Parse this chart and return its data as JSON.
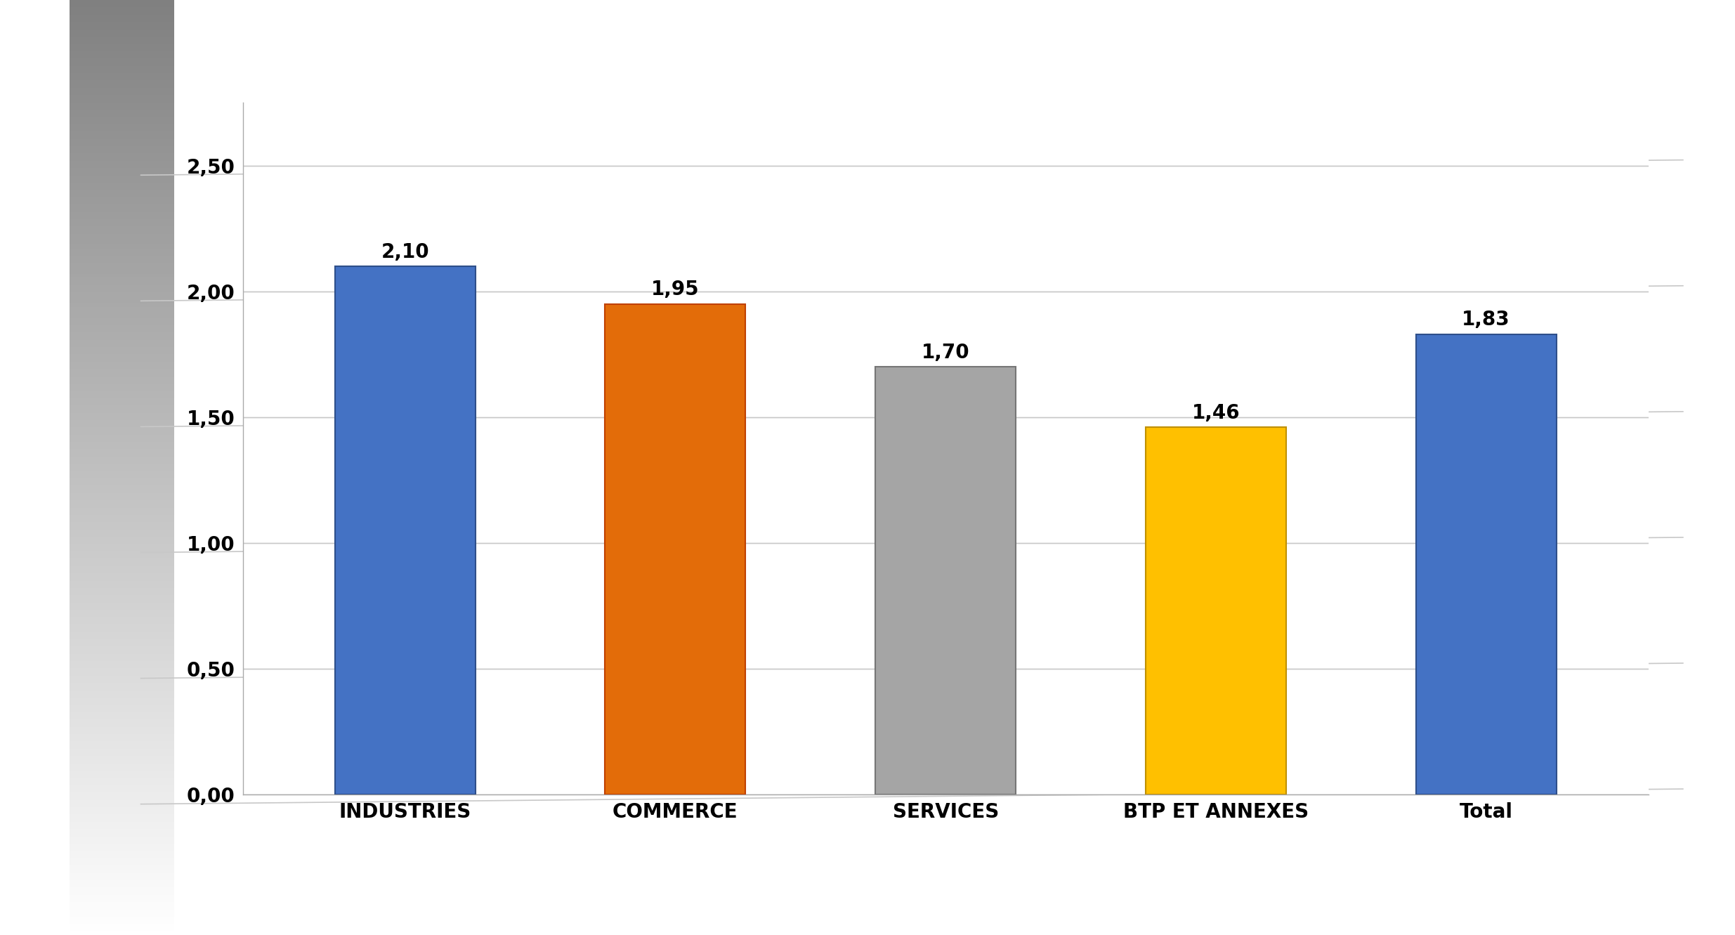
{
  "categories": [
    "INDUSTRIES",
    "COMMERCE",
    "SERVICES",
    "BTP ET ANNEXES",
    "Total"
  ],
  "values": [
    2.1,
    1.95,
    1.7,
    1.46,
    1.83
  ],
  "bar_colors": [
    "#4472C4",
    "#E36C09",
    "#A5A5A5",
    "#FFC000",
    "#4472C4"
  ],
  "bar_edge_colors": [
    "#2E4F8A",
    "#C04000",
    "#767676",
    "#BF9000",
    "#2E4F8A"
  ],
  "value_labels": [
    "2,10",
    "1,95",
    "1,70",
    "1,46",
    "1,83"
  ],
  "ytick_labels": [
    "0,00",
    "0,50",
    "1,00",
    "1,50",
    "2,00",
    "2,50"
  ],
  "ytick_values": [
    0.0,
    0.5,
    1.0,
    1.5,
    2.0,
    2.5
  ],
  "ylim": [
    0,
    2.75
  ],
  "bar_width": 0.52,
  "label_fontsize": 20,
  "tick_fontsize": 20,
  "value_fontsize": 20,
  "grid_color": "#C8C8C8",
  "panel_bg": "#FFFFFF",
  "outer_bg": "#FFFFFF"
}
